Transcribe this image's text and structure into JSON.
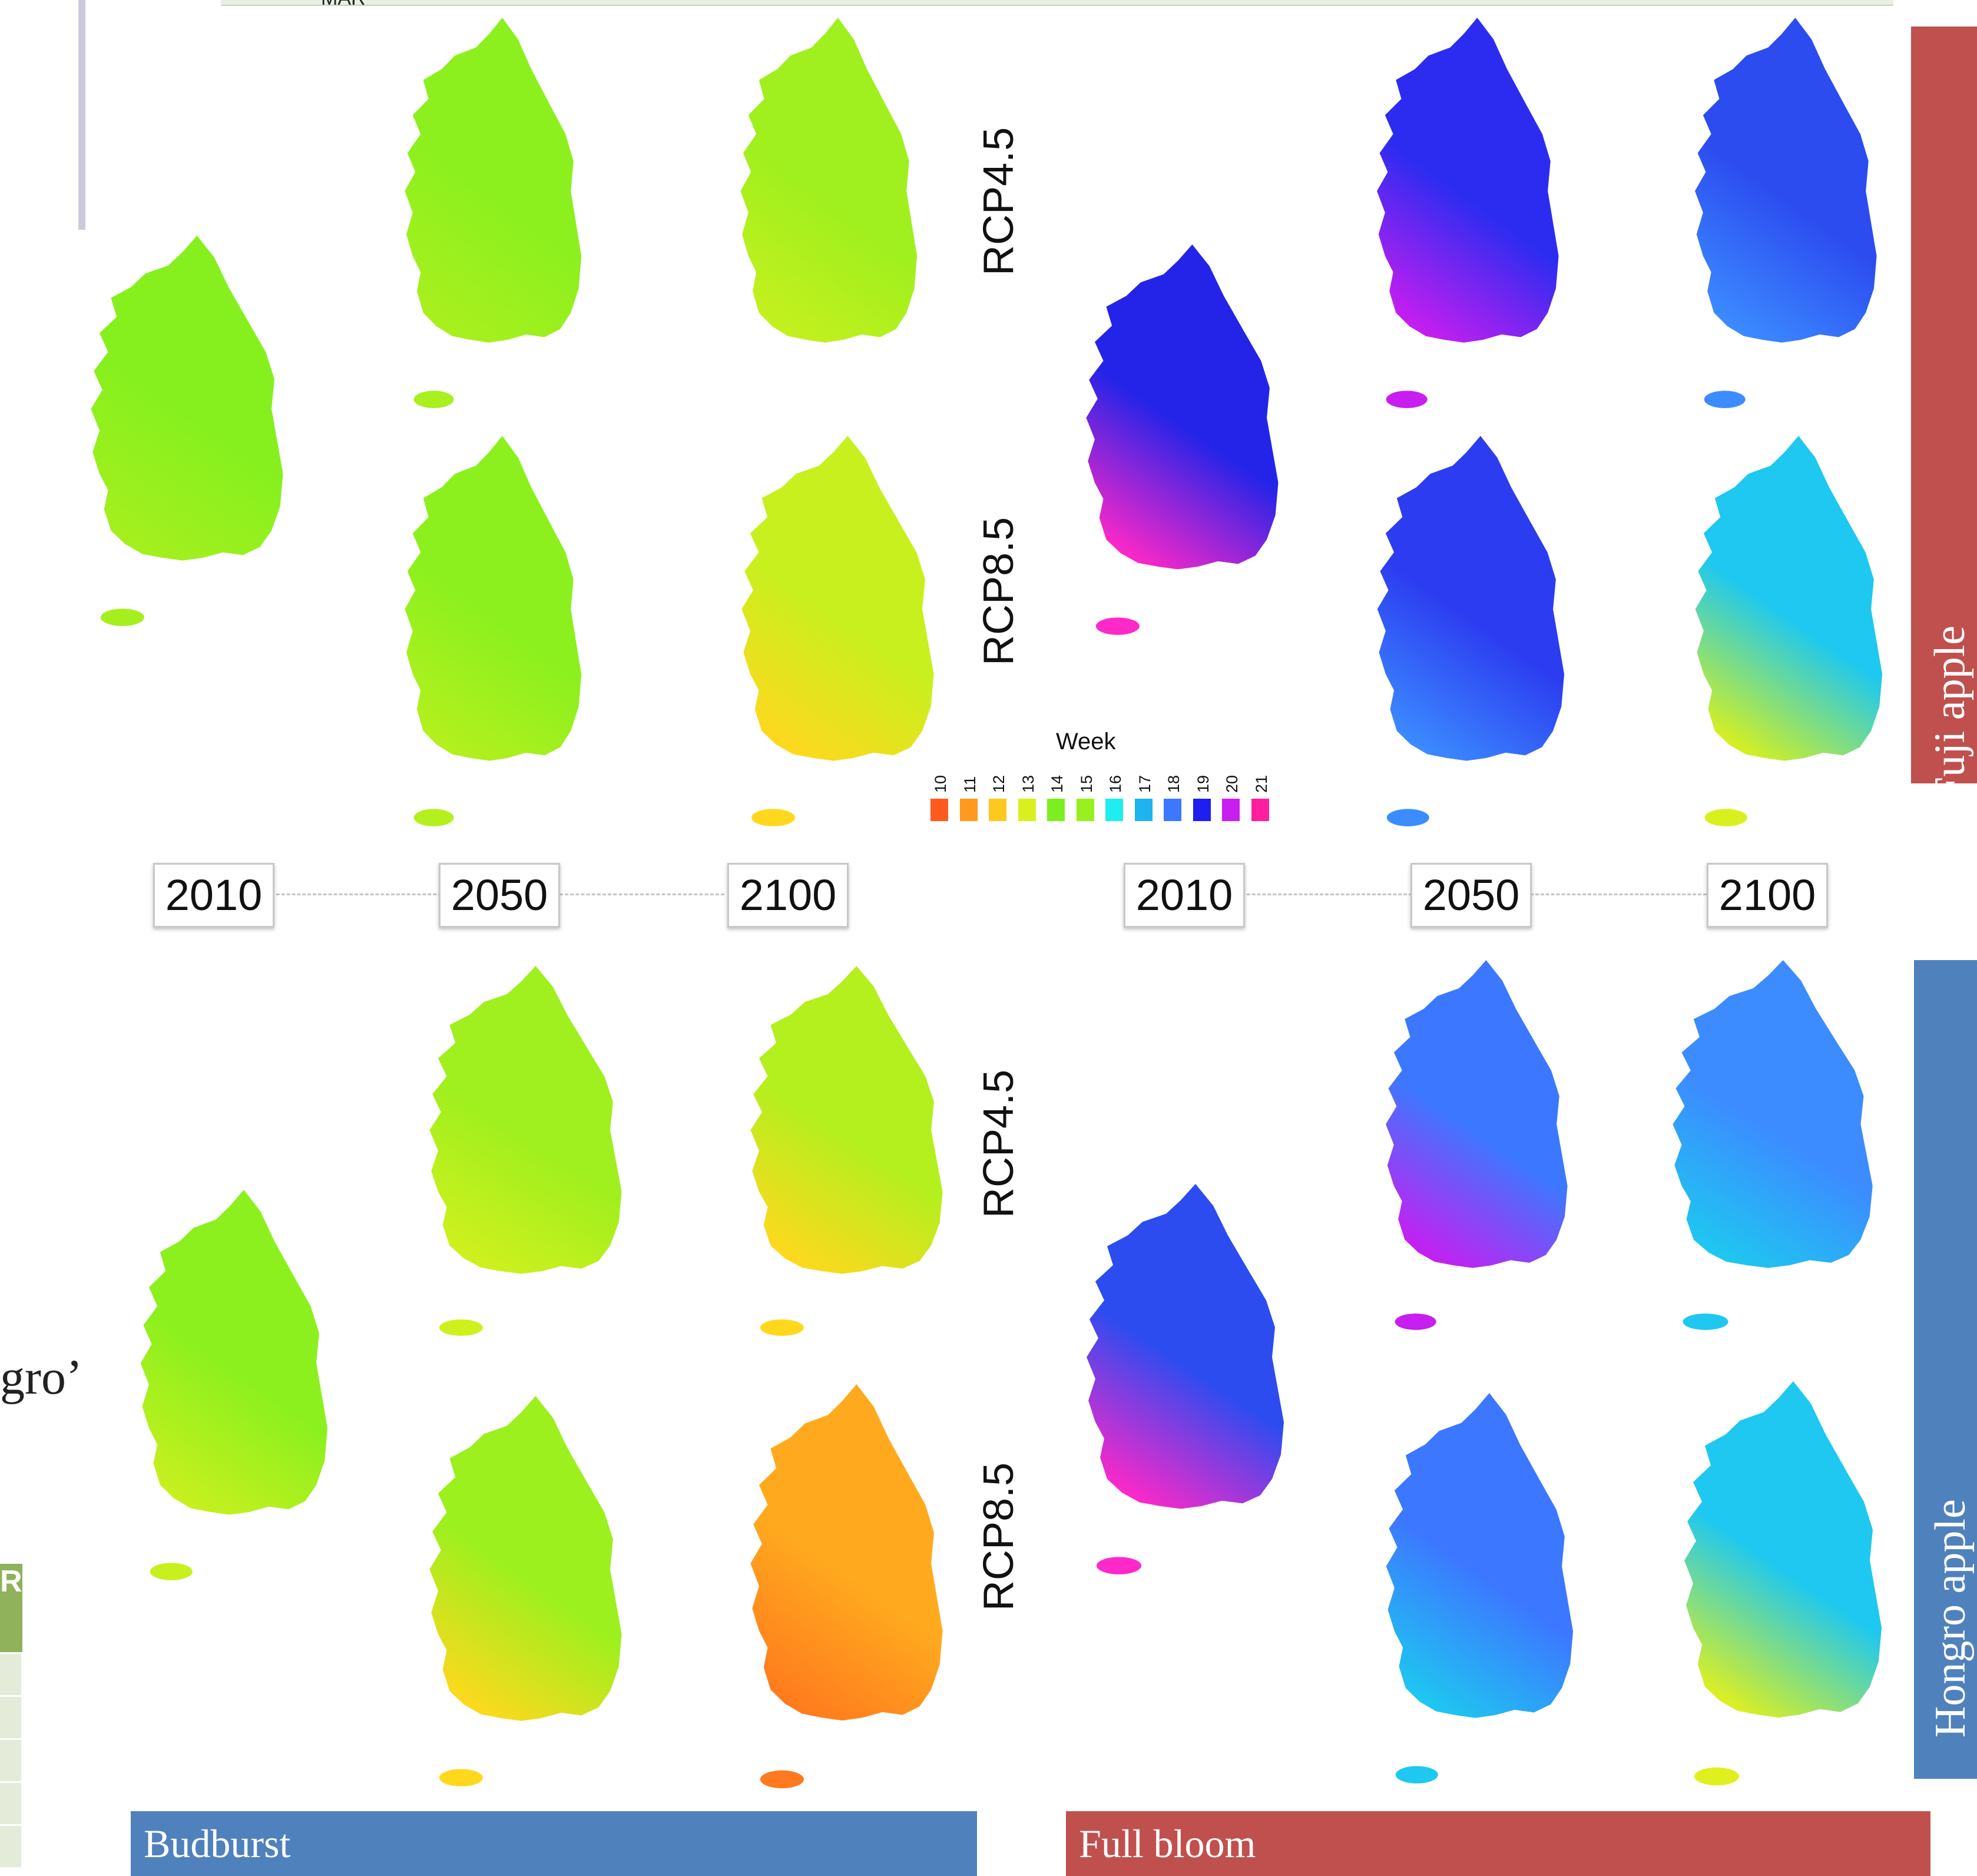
{
  "header_strip": {
    "label": "MAR"
  },
  "left_fragment": {
    "text": "gro’",
    "table_head": "R"
  },
  "scenarios": {
    "rcp45": "RCP4.5",
    "rcp85": "RCP8.5"
  },
  "years": [
    "2010",
    "2050",
    "2100"
  ],
  "legend": {
    "title": "Week",
    "weeks": [
      "10",
      "11",
      "12",
      "13",
      "14",
      "15",
      "16",
      "17",
      "18",
      "19",
      "20",
      "21"
    ],
    "colors": [
      "#ff5a1e",
      "#ff9a1e",
      "#ffc81e",
      "#d8f01e",
      "#7cf01e",
      "#98f01e",
      "#1eeef0",
      "#1eb4f0",
      "#3c78ff",
      "#1e1ef0",
      "#c81ef0",
      "#ff1ea0"
    ]
  },
  "side_labels": {
    "fuji": "Fuji apple",
    "hongro": "Hongro apple"
  },
  "bottom_labels": {
    "budburst": "Budburst",
    "fullbloom": "Full bloom"
  },
  "colors": {
    "fuji_bar": "#c0504d",
    "hongro_bar": "#4f81bd",
    "budburst_bar": "#4f81bd",
    "fullbloom_bar": "#c0504d"
  },
  "maps": {
    "fuji_budburst": {
      "2010": [
        "#86f01e",
        "#a6ef1e"
      ],
      "rcp45_2050": [
        "#8cf01e",
        "#aaef1e"
      ],
      "rcp45_2100": [
        "#a0ef1e",
        "#c4f01e"
      ],
      "rcp85_2050": [
        "#8cf01e",
        "#b4f01e"
      ],
      "rcp85_2100": [
        "#c8f01e",
        "#ffd81e"
      ]
    },
    "hongro_budburst": {
      "2010": [
        "#8cf01e",
        "#c8f01e"
      ],
      "rcp45_2050": [
        "#a0ef1e",
        "#d0f01e"
      ],
      "rcp45_2100": [
        "#b4ef1e",
        "#ffd81e"
      ],
      "rcp85_2050": [
        "#9cf01e",
        "#ffd81e"
      ],
      "rcp85_2100": [
        "#ffaa1e",
        "#ff7a1e"
      ]
    },
    "fuji_fullbloom": {
      "2010": [
        "#2424e8",
        "#ff28c8"
      ],
      "rcp45_2050": [
        "#2c2cf0",
        "#c81ef0"
      ],
      "rcp45_2100": [
        "#2c4cf0",
        "#3c8cff"
      ],
      "rcp85_2050": [
        "#2c3cf0",
        "#3c8cff"
      ],
      "rcp85_2100": [
        "#1ec8f0",
        "#d8f01e"
      ]
    },
    "hongro_fullbloom": {
      "2010": [
        "#2c4cf0",
        "#ff28c8"
      ],
      "rcp45_2050": [
        "#3c78ff",
        "#c81ef0"
      ],
      "rcp45_2100": [
        "#3c8cff",
        "#1ec8f0"
      ],
      "rcp85_2050": [
        "#3c78ff",
        "#1ec8f0"
      ],
      "rcp85_2100": [
        "#1ec8f0",
        "#e0f01e"
      ]
    }
  }
}
